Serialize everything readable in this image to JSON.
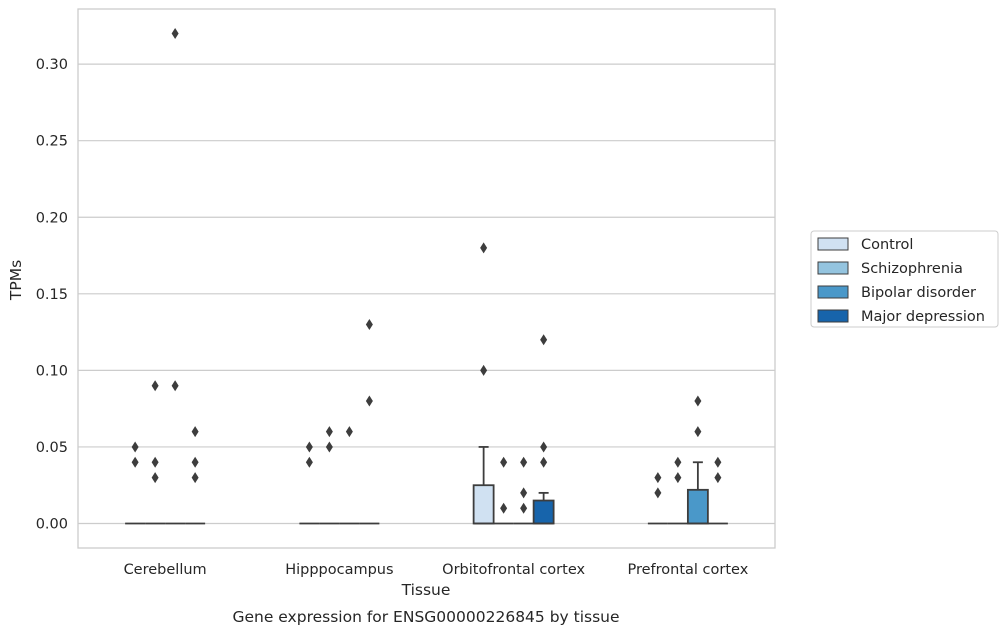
{
  "chart_data": {
    "type": "box",
    "caption": "Gene expression for ENSG00000226845 by tissue",
    "xlabel": "Tissue",
    "ylabel": "TPMs",
    "ylim": [
      -0.016,
      0.336
    ],
    "yticks": [
      0.0,
      0.05,
      0.1,
      0.15,
      0.2,
      0.25,
      0.3
    ],
    "ytick_labels": [
      "0.00",
      "0.05",
      "0.10",
      "0.15",
      "0.20",
      "0.25",
      "0.30"
    ],
    "grid": "horizontal",
    "legend_position": "right",
    "categories": [
      "Cerebellum",
      "Hipppocampus",
      "Orbitofrontal cortex",
      "Prefrontal cortex"
    ],
    "series": [
      {
        "name": "Control",
        "color": "#d0e1f2"
      },
      {
        "name": "Schizophrenia",
        "color": "#94c4df"
      },
      {
        "name": "Bipolar disorder",
        "color": "#4a98c9"
      },
      {
        "name": "Major depression",
        "color": "#1764ab"
      }
    ],
    "boxes": [
      [
        {
          "q1": 0,
          "median": 0,
          "q3": 0,
          "whisker_low": 0,
          "whisker_high": 0,
          "outliers": [
            0.05,
            0.04
          ]
        },
        {
          "q1": 0,
          "median": 0,
          "q3": 0,
          "whisker_low": 0,
          "whisker_high": 0,
          "outliers": [
            0.09,
            0.04,
            0.03
          ]
        },
        {
          "q1": 0,
          "median": 0,
          "q3": 0,
          "whisker_low": 0,
          "whisker_high": 0,
          "outliers": [
            0.32,
            0.09
          ]
        },
        {
          "q1": 0,
          "median": 0,
          "q3": 0,
          "whisker_low": 0,
          "whisker_high": 0,
          "outliers": [
            0.06,
            0.04,
            0.03
          ]
        }
      ],
      [
        {
          "q1": 0,
          "median": 0,
          "q3": 0,
          "whisker_low": 0,
          "whisker_high": 0,
          "outliers": [
            0.05,
            0.04
          ]
        },
        {
          "q1": 0,
          "median": 0,
          "q3": 0,
          "whisker_low": 0,
          "whisker_high": 0,
          "outliers": [
            0.06,
            0.05
          ]
        },
        {
          "q1": 0,
          "median": 0,
          "q3": 0,
          "whisker_low": 0,
          "whisker_high": 0,
          "outliers": [
            0.06
          ]
        },
        {
          "q1": 0,
          "median": 0,
          "q3": 0,
          "whisker_low": 0,
          "whisker_high": 0,
          "outliers": [
            0.13,
            0.08
          ]
        }
      ],
      [
        {
          "q1": 0,
          "median": 0,
          "q3": 0.025,
          "whisker_low": 0,
          "whisker_high": 0.05,
          "outliers": [
            0.18,
            0.1
          ]
        },
        {
          "q1": 0,
          "median": 0,
          "q3": 0,
          "whisker_low": 0,
          "whisker_high": 0,
          "outliers": [
            0.04,
            0.01
          ]
        },
        {
          "q1": 0,
          "median": 0,
          "q3": 0,
          "whisker_low": 0,
          "whisker_high": 0,
          "outliers": [
            0.04,
            0.02,
            0.01
          ]
        },
        {
          "q1": 0,
          "median": 0,
          "q3": 0.015,
          "whisker_low": 0,
          "whisker_high": 0.02,
          "outliers": [
            0.12,
            0.05,
            0.04
          ]
        }
      ],
      [
        {
          "q1": 0,
          "median": 0,
          "q3": 0,
          "whisker_low": 0,
          "whisker_high": 0,
          "outliers": [
            0.03,
            0.02
          ]
        },
        {
          "q1": 0,
          "median": 0,
          "q3": 0,
          "whisker_low": 0,
          "whisker_high": 0,
          "outliers": [
            0.04,
            0.03
          ]
        },
        {
          "q1": 0,
          "median": 0,
          "q3": 0.022,
          "whisker_low": 0,
          "whisker_high": 0.04,
          "outliers": [
            0.08,
            0.06
          ]
        },
        {
          "q1": 0,
          "median": 0,
          "q3": 0,
          "whisker_low": 0,
          "whisker_high": 0,
          "outliers": [
            0.04,
            0.03
          ]
        }
      ]
    ]
  }
}
